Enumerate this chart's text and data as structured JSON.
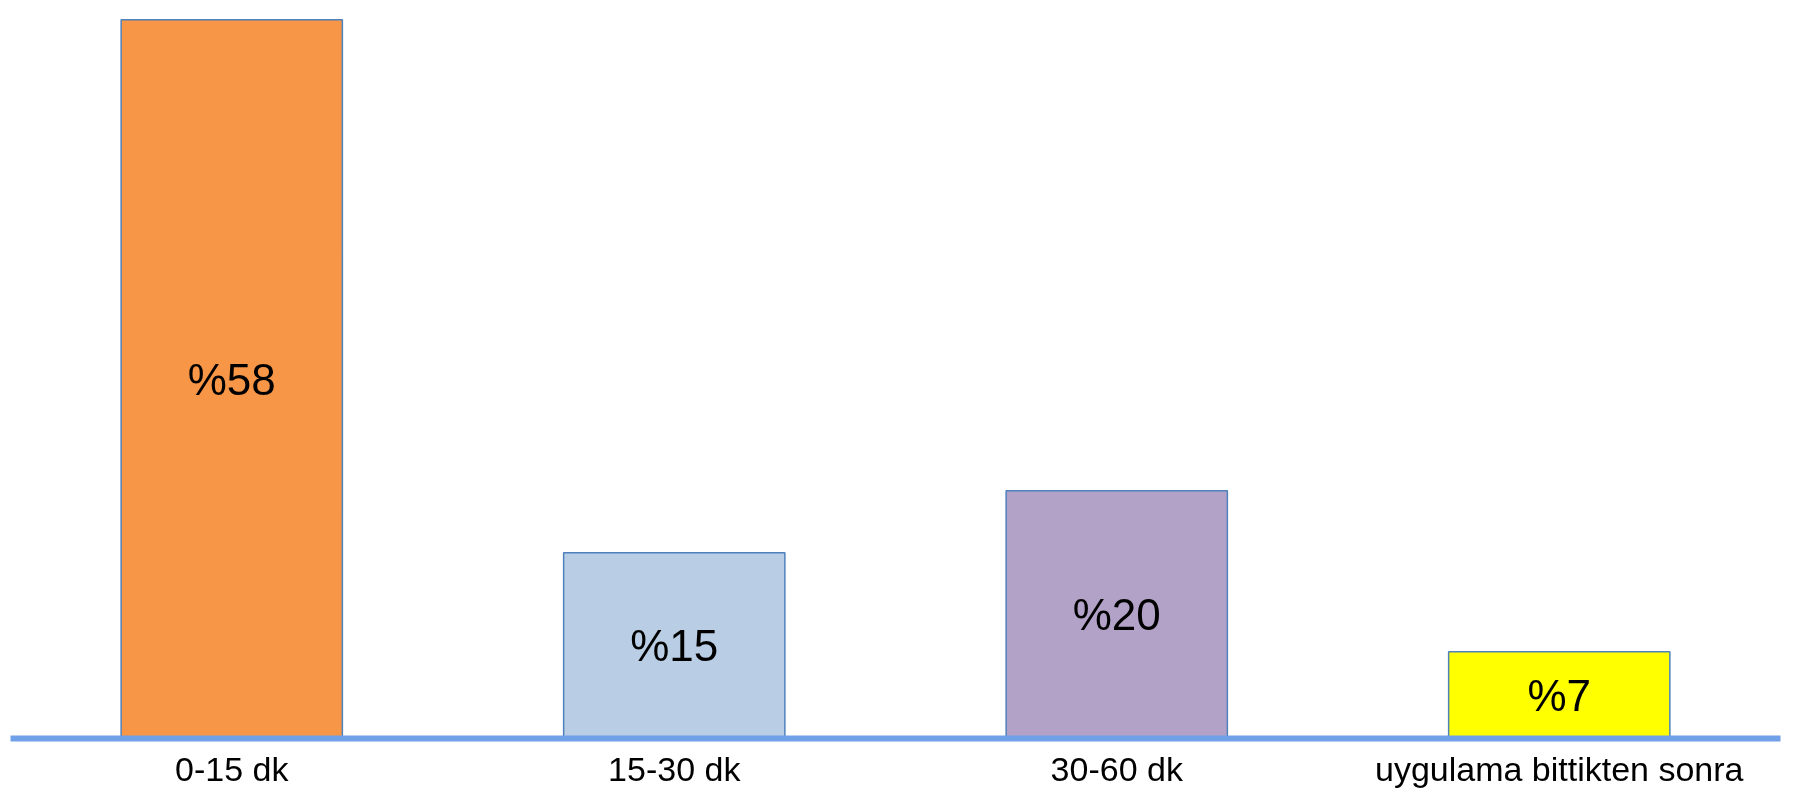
{
  "chart_data": {
    "type": "bar",
    "categories": [
      "0-15 dk",
      "15-30 dk",
      "30-60 dk",
      "uygulama bittikten sonra"
    ],
    "values": [
      58,
      15,
      20,
      7
    ],
    "colors": [
      "#f79646",
      "#b9cde5",
      "#b3a2c7",
      "#ffff00"
    ],
    "value_labels": [
      "%58",
      "%15",
      "%20",
      "%7"
    ],
    "grid": false,
    "tick_labels": "x"
  }
}
